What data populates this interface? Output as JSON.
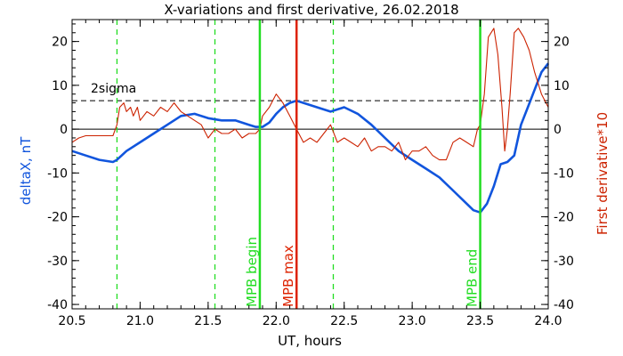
{
  "chart_data": {
    "type": "line",
    "title": "X-variations and first derivative, 26.02.2018",
    "xlabel": "UT, hours",
    "ylabel_left": "deltaX, nT",
    "ylabel_right": "First derivative*10",
    "xlim": [
      20.5,
      24.0
    ],
    "ylim": [
      -41,
      25
    ],
    "x_ticks": [
      20.5,
      21.0,
      21.5,
      22.0,
      22.5,
      23.0,
      23.5,
      24.0
    ],
    "x_tick_labels": [
      "20.5",
      "21.0",
      "21.5",
      "22.0",
      "22.5",
      "23.0",
      "23.5",
      "24.0"
    ],
    "y_ticks": [
      -40,
      -30,
      -20,
      -10,
      0,
      10,
      20
    ],
    "y_tick_labels": [
      "-40",
      "-30",
      "-20",
      "-10",
      "0",
      "10",
      "20"
    ],
    "y2_ticks": [
      -40,
      -30,
      -20,
      -10,
      0,
      10,
      20
    ],
    "y2_tick_labels": [
      "-40",
      "-30",
      "-20",
      "-10",
      "0",
      "10",
      "20"
    ],
    "zero_line": 0,
    "sigma_level": 6.5,
    "sigma_label": "2sigma",
    "dashed_vlines": [
      20.83,
      21.55,
      22.42
    ],
    "markers": [
      {
        "x": 21.88,
        "label": "MPB begin",
        "color": "#22dd22"
      },
      {
        "x": 22.15,
        "label": "MPB max",
        "color": "#dd2200"
      },
      {
        "x": 23.5,
        "label": "MPB end",
        "color": "#22dd22"
      }
    ],
    "colors": {
      "deltaX": "#1155dd",
      "derivative": "#cc2200",
      "dashed_vline": "#22dd22"
    },
    "series": [
      {
        "name": "deltaX, nT",
        "color": "#1155dd",
        "x": [
          20.5,
          20.6,
          20.7,
          20.8,
          20.83,
          20.9,
          21.0,
          21.1,
          21.2,
          21.3,
          21.4,
          21.5,
          21.6,
          21.7,
          21.8,
          21.85,
          21.9,
          21.95,
          22.0,
          22.05,
          22.1,
          22.15,
          22.2,
          22.3,
          22.4,
          22.5,
          22.6,
          22.7,
          22.8,
          22.9,
          23.0,
          23.1,
          23.2,
          23.3,
          23.4,
          23.45,
          23.5,
          23.55,
          23.6,
          23.65,
          23.7,
          23.75,
          23.8,
          23.85,
          23.9,
          23.95,
          24.0
        ],
        "values": [
          -5,
          -6,
          -7,
          -7.5,
          -7,
          -5,
          -3,
          -1,
          1,
          3,
          3.5,
          2.5,
          2,
          2,
          1,
          0.5,
          0.5,
          1.5,
          3.5,
          5,
          6,
          6.5,
          6,
          5,
          4,
          5,
          3.5,
          1,
          -2,
          -5,
          -7,
          -9,
          -11,
          -14,
          -17,
          -18.5,
          -19,
          -17,
          -13,
          -8,
          -7.5,
          -6,
          1,
          5,
          9,
          13,
          15
        ]
      },
      {
        "name": "First derivative*10",
        "color": "#cc2200",
        "x": [
          20.5,
          20.55,
          20.6,
          20.65,
          20.7,
          20.75,
          20.8,
          20.83,
          20.85,
          20.88,
          20.9,
          20.93,
          20.95,
          20.98,
          21.0,
          21.05,
          21.1,
          21.15,
          21.2,
          21.25,
          21.3,
          21.35,
          21.4,
          21.45,
          21.5,
          21.55,
          21.6,
          21.65,
          21.7,
          21.75,
          21.8,
          21.85,
          21.88,
          21.9,
          21.95,
          22.0,
          22.05,
          22.1,
          22.15,
          22.2,
          22.25,
          22.3,
          22.35,
          22.4,
          22.45,
          22.5,
          22.55,
          22.6,
          22.65,
          22.7,
          22.75,
          22.8,
          22.85,
          22.9,
          22.95,
          23.0,
          23.05,
          23.1,
          23.15,
          23.2,
          23.25,
          23.3,
          23.35,
          23.4,
          23.45,
          23.48,
          23.5,
          23.53,
          23.56,
          23.6,
          23.63,
          23.66,
          23.68,
          23.7,
          23.72,
          23.75,
          23.78,
          23.82,
          23.86,
          23.9,
          23.95,
          24.0
        ],
        "values": [
          -3,
          -2,
          -1.5,
          -1.5,
          -1.5,
          -1.5,
          -1.5,
          1,
          5,
          6,
          4,
          5,
          3,
          5,
          2,
          4,
          3,
          5,
          4,
          6,
          4,
          3,
          2,
          1,
          -2,
          0,
          -1,
          -1,
          0,
          -2,
          -1,
          -1,
          0,
          3,
          5,
          8,
          6,
          3,
          0,
          -3,
          -2,
          -3,
          -1,
          1,
          -3,
          -2,
          -3,
          -4,
          -2,
          -5,
          -4,
          -4,
          -5,
          -3,
          -7,
          -5,
          -5,
          -4,
          -6,
          -7,
          -7,
          -3,
          -2,
          -3,
          -4,
          0,
          1,
          8,
          21,
          23,
          17,
          5,
          -5,
          0,
          8,
          22,
          23,
          21,
          18,
          13,
          8,
          5
        ]
      }
    ]
  }
}
